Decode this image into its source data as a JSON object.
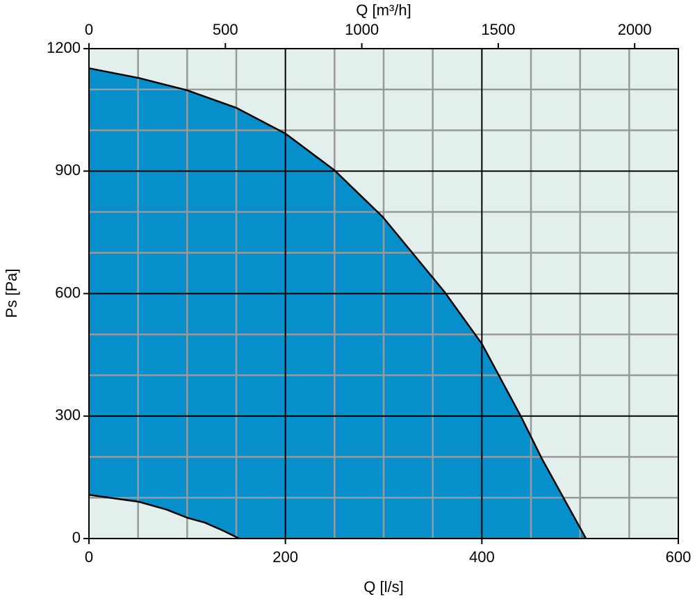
{
  "chart_data": {
    "type": "area",
    "xlabel": "Q [l/s]",
    "x2label": "Q [m³/h]",
    "ylabel": "Ps [Pa]",
    "xlim": [
      0,
      600
    ],
    "xticks": [
      0,
      200,
      400,
      600
    ],
    "x2lim": [
      0,
      2160
    ],
    "x2ticks": [
      0,
      500,
      1000,
      1500,
      2000
    ],
    "ylim": [
      0,
      1200
    ],
    "yticks": [
      0,
      300,
      600,
      900,
      1200
    ],
    "xminorticks": [
      50,
      100,
      150,
      250,
      300,
      350,
      450,
      500,
      550
    ],
    "yminorticks": [
      100,
      200,
      400,
      500,
      700,
      800,
      1000,
      1100
    ],
    "grid": true,
    "background": "#e2efec",
    "series": [
      {
        "color": "#068fcb",
        "x": [
          0,
          51,
          100,
          150,
          200,
          250,
          299,
          362,
          400,
          440,
          461,
          506
        ],
        "values": [
          1152,
          1128,
          1098,
          1055,
          992,
          902,
          788,
          604,
          477,
          298,
          196,
          0
        ]
      },
      {
        "color": "#e2efec",
        "x": [
          0,
          51,
          79,
          100,
          118,
          136,
          153
        ],
        "values": [
          107,
          90,
          71,
          51,
          39,
          20,
          0
        ]
      }
    ]
  }
}
